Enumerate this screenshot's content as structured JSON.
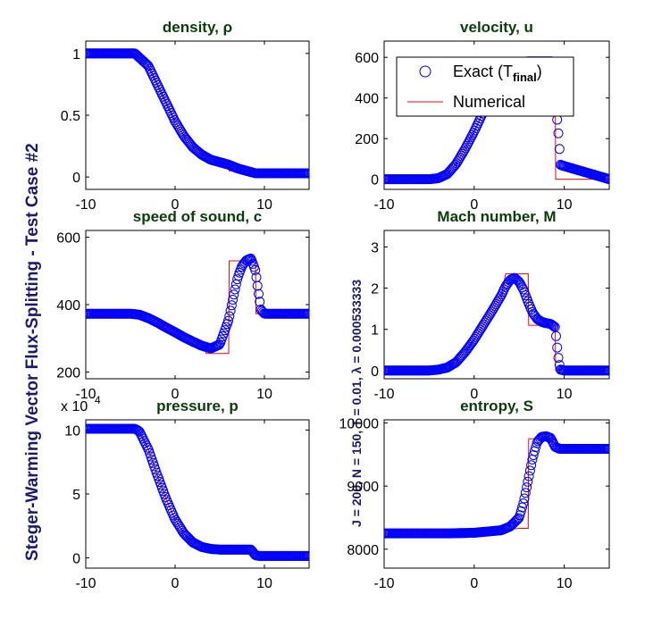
{
  "figure": {
    "side_title": "Steger-Warming Vector Flux-Splitting - Test Case #2",
    "side_subtitle": "J = 200,  N = 150,  T = 0.01,  λ = 0.000533333"
  },
  "legend": {
    "exact_label": "Exact (T",
    "exact_sub": "final",
    "exact_close": ")",
    "numerical_label": "Numerical"
  },
  "colors": {
    "exact": "#0000ff",
    "numerical": "#ff0000",
    "title": "#0b3d0b",
    "side": "#1a1a6e"
  },
  "chart_data": [
    {
      "type": "line",
      "title": "density, ρ",
      "xlim": [
        -10,
        15
      ],
      "ylim": [
        -0.1,
        1.1
      ],
      "xticks": [
        -10,
        0,
        10
      ],
      "xtick_labels": [
        "-10",
        "0",
        "10"
      ],
      "yticks": [
        0,
        0.5,
        1
      ],
      "ytick_labels": [
        "0",
        "0.5",
        "1"
      ],
      "series": [
        {
          "name": "Exact (Tfinal)",
          "style": "markers",
          "x": [
            -10,
            -4.5,
            -3,
            -2,
            -1,
            0,
            1,
            2,
            3,
            4,
            5,
            5.5,
            6,
            7,
            8,
            8.5,
            9,
            9.5,
            15
          ],
          "y": [
            1,
            1,
            0.9,
            0.75,
            0.6,
            0.45,
            0.33,
            0.24,
            0.18,
            0.14,
            0.12,
            0.11,
            0.1,
            0.07,
            0.05,
            0.04,
            0.03,
            0.03,
            0.03
          ]
        },
        {
          "name": "Numerical",
          "style": "line",
          "x": [
            -10,
            -4.5,
            -3,
            -2,
            -1,
            0,
            1,
            2,
            3,
            4,
            5,
            6,
            6.05,
            8,
            9,
            9.05,
            15
          ],
          "y": [
            1,
            1,
            0.9,
            0.75,
            0.6,
            0.45,
            0.33,
            0.24,
            0.18,
            0.14,
            0.12,
            0.11,
            0.05,
            0.05,
            0.05,
            0.03,
            0.03
          ]
        }
      ]
    },
    {
      "type": "line",
      "title": "velocity, u",
      "xlim": [
        -10,
        15
      ],
      "ylim": [
        -50,
        680
      ],
      "xticks": [
        -10,
        0,
        10
      ],
      "xtick_labels": [
        "-10",
        "0",
        "10"
      ],
      "yticks": [
        0,
        200,
        400,
        600
      ],
      "ytick_labels": [
        "0",
        "200",
        "400",
        "600"
      ],
      "series": [
        {
          "name": "Exact (Tfinal)",
          "style": "markers",
          "x": [
            -10,
            -5,
            -4,
            -3,
            -2,
            -1,
            0,
            1,
            2,
            3,
            4,
            5,
            6,
            7,
            8,
            8.6,
            9,
            9.3,
            9.6,
            15
          ],
          "y": [
            0,
            0,
            5,
            25,
            75,
            150,
            235,
            330,
            420,
            505,
            560,
            575,
            580,
            580,
            580,
            580,
            400,
            255,
            70,
            0
          ]
        },
        {
          "name": "Numerical",
          "style": "line",
          "x": [
            -10,
            -5,
            -4,
            -3,
            -2,
            -1,
            0,
            1,
            2,
            3,
            4,
            5,
            6,
            7,
            8,
            8.9,
            9,
            9.05,
            15
          ],
          "y": [
            0,
            0,
            5,
            25,
            75,
            150,
            235,
            330,
            420,
            505,
            560,
            575,
            580,
            580,
            580,
            580,
            580,
            0,
            0
          ]
        }
      ]
    },
    {
      "type": "line",
      "title": "speed of sound, c",
      "xlim": [
        -10,
        15
      ],
      "ylim": [
        180,
        620
      ],
      "xticks": [
        -10,
        0,
        10
      ],
      "xtick_labels": [
        "-10",
        "0",
        "10"
      ],
      "yticks": [
        200,
        400,
        600
      ],
      "ytick_labels": [
        "200",
        "400",
        "600"
      ],
      "series": [
        {
          "name": "Exact (Tfinal)",
          "style": "markers",
          "x": [
            -10,
            -5,
            -4,
            -3,
            -2,
            -1,
            0,
            1,
            2,
            3,
            4,
            5,
            6,
            6.5,
            7,
            7.5,
            8,
            8.5,
            9,
            9.3,
            9.6,
            10,
            15
          ],
          "y": [
            373,
            373,
            370,
            360,
            347,
            332,
            318,
            303,
            290,
            278,
            270,
            282,
            355,
            420,
            480,
            515,
            532,
            537,
            500,
            440,
            385,
            373,
            373
          ]
        },
        {
          "name": "Numerical",
          "style": "line",
          "x": [
            -10,
            -5,
            -4,
            -3,
            -2,
            -1,
            0,
            1,
            2,
            3,
            3.5,
            6,
            6.05,
            9,
            9.05,
            15
          ],
          "y": [
            373,
            373,
            370,
            360,
            347,
            332,
            318,
            303,
            290,
            278,
            255,
            255,
            530,
            530,
            373,
            373
          ]
        }
      ]
    },
    {
      "type": "line",
      "title": "Mach number, M",
      "xlim": [
        -10,
        15
      ],
      "ylim": [
        -0.2,
        3.4
      ],
      "xticks": [
        -10,
        0,
        10
      ],
      "xtick_labels": [
        "-10",
        "0",
        "10"
      ],
      "yticks": [
        0,
        1,
        2,
        3
      ],
      "ytick_labels": [
        "0",
        "1",
        "2",
        "3"
      ],
      "series": [
        {
          "name": "Exact (Tfinal)",
          "style": "markers",
          "x": [
            -10,
            -5,
            -4,
            -3,
            -2,
            -1,
            0,
            1,
            2,
            3,
            3.5,
            4,
            4.5,
            5,
            5.5,
            6,
            6.5,
            7,
            7.5,
            8,
            8.5,
            9,
            9.2,
            9.4,
            9.6,
            10,
            15
          ],
          "y": [
            0,
            0,
            0.02,
            0.07,
            0.2,
            0.45,
            0.75,
            1.1,
            1.45,
            1.82,
            2.05,
            2.2,
            2.25,
            2.15,
            1.95,
            1.65,
            1.4,
            1.25,
            1.18,
            1.15,
            1.13,
            1.05,
            0.6,
            0.2,
            0.02,
            0,
            0
          ]
        },
        {
          "name": "Numerical",
          "style": "line",
          "x": [
            -10,
            -5,
            -4,
            -3,
            -2,
            -1,
            0,
            1,
            2,
            3,
            3.5,
            6,
            6.05,
            9,
            9.05,
            15
          ],
          "y": [
            0,
            0,
            0.02,
            0.07,
            0.2,
            0.45,
            0.75,
            1.1,
            1.45,
            1.82,
            2.35,
            2.35,
            1.1,
            1.1,
            0,
            0
          ]
        }
      ]
    },
    {
      "type": "line",
      "title": "pressure, p",
      "exponent_label": "x 10",
      "exponent_power": "4",
      "xlim": [
        -10,
        15
      ],
      "ylim": [
        -0.8,
        10.8
      ],
      "xticks": [
        -10,
        0,
        10
      ],
      "xtick_labels": [
        "-10",
        "0",
        "10"
      ],
      "yticks": [
        0,
        5,
        10
      ],
      "ytick_labels": [
        "0",
        "5",
        "10"
      ],
      "series": [
        {
          "name": "Exact (Tfinal)",
          "style": "markers",
          "x": [
            -10,
            -4.5,
            -4,
            -3,
            -2,
            -1,
            0,
            1,
            2,
            3,
            4,
            5,
            6,
            7,
            8,
            8.5,
            9,
            9.5,
            15
          ],
          "y": [
            10.1,
            10.1,
            9.9,
            8.5,
            6.5,
            4.6,
            3.0,
            1.9,
            1.2,
            0.85,
            0.7,
            0.65,
            0.65,
            0.65,
            0.65,
            0.65,
            0.2,
            0.15,
            0.15
          ]
        },
        {
          "name": "Numerical",
          "style": "line",
          "x": [
            -10,
            -4.5,
            -4,
            -3,
            -2,
            -1,
            0,
            1,
            2,
            3,
            4,
            5,
            6,
            7,
            8,
            9,
            9.05,
            15
          ],
          "y": [
            10.1,
            10.1,
            9.9,
            8.5,
            6.5,
            4.6,
            3.0,
            1.9,
            1.2,
            0.85,
            0.7,
            0.65,
            0.65,
            0.65,
            0.65,
            0.65,
            0.15,
            0.15
          ]
        }
      ]
    },
    {
      "type": "line",
      "title": "entropy, S",
      "xlim": [
        -10,
        15
      ],
      "ylim": [
        7700,
        10050
      ],
      "xticks": [
        -10,
        0,
        10
      ],
      "xtick_labels": [
        "-10",
        "0",
        "10"
      ],
      "yticks": [
        8000,
        9000,
        10000
      ],
      "ytick_labels": [
        "8000",
        "9000",
        "10000"
      ],
      "series": [
        {
          "name": "Exact (Tfinal)",
          "style": "markers",
          "x": [
            -10,
            -3,
            0,
            3,
            4,
            5,
            5.5,
            6,
            6.5,
            7,
            7.5,
            8,
            8.5,
            9,
            9.5,
            15
          ],
          "y": [
            8250,
            8250,
            8260,
            8300,
            8360,
            8500,
            8750,
            9100,
            9450,
            9700,
            9780,
            9790,
            9760,
            9620,
            9590,
            9590
          ]
        },
        {
          "name": "Numerical",
          "style": "line",
          "x": [
            -10,
            -3,
            0,
            3,
            5,
            6,
            6.05,
            9,
            9.05,
            15
          ],
          "y": [
            8250,
            8250,
            8260,
            8300,
            8330,
            8330,
            9750,
            9750,
            9590,
            9590
          ]
        }
      ]
    }
  ]
}
